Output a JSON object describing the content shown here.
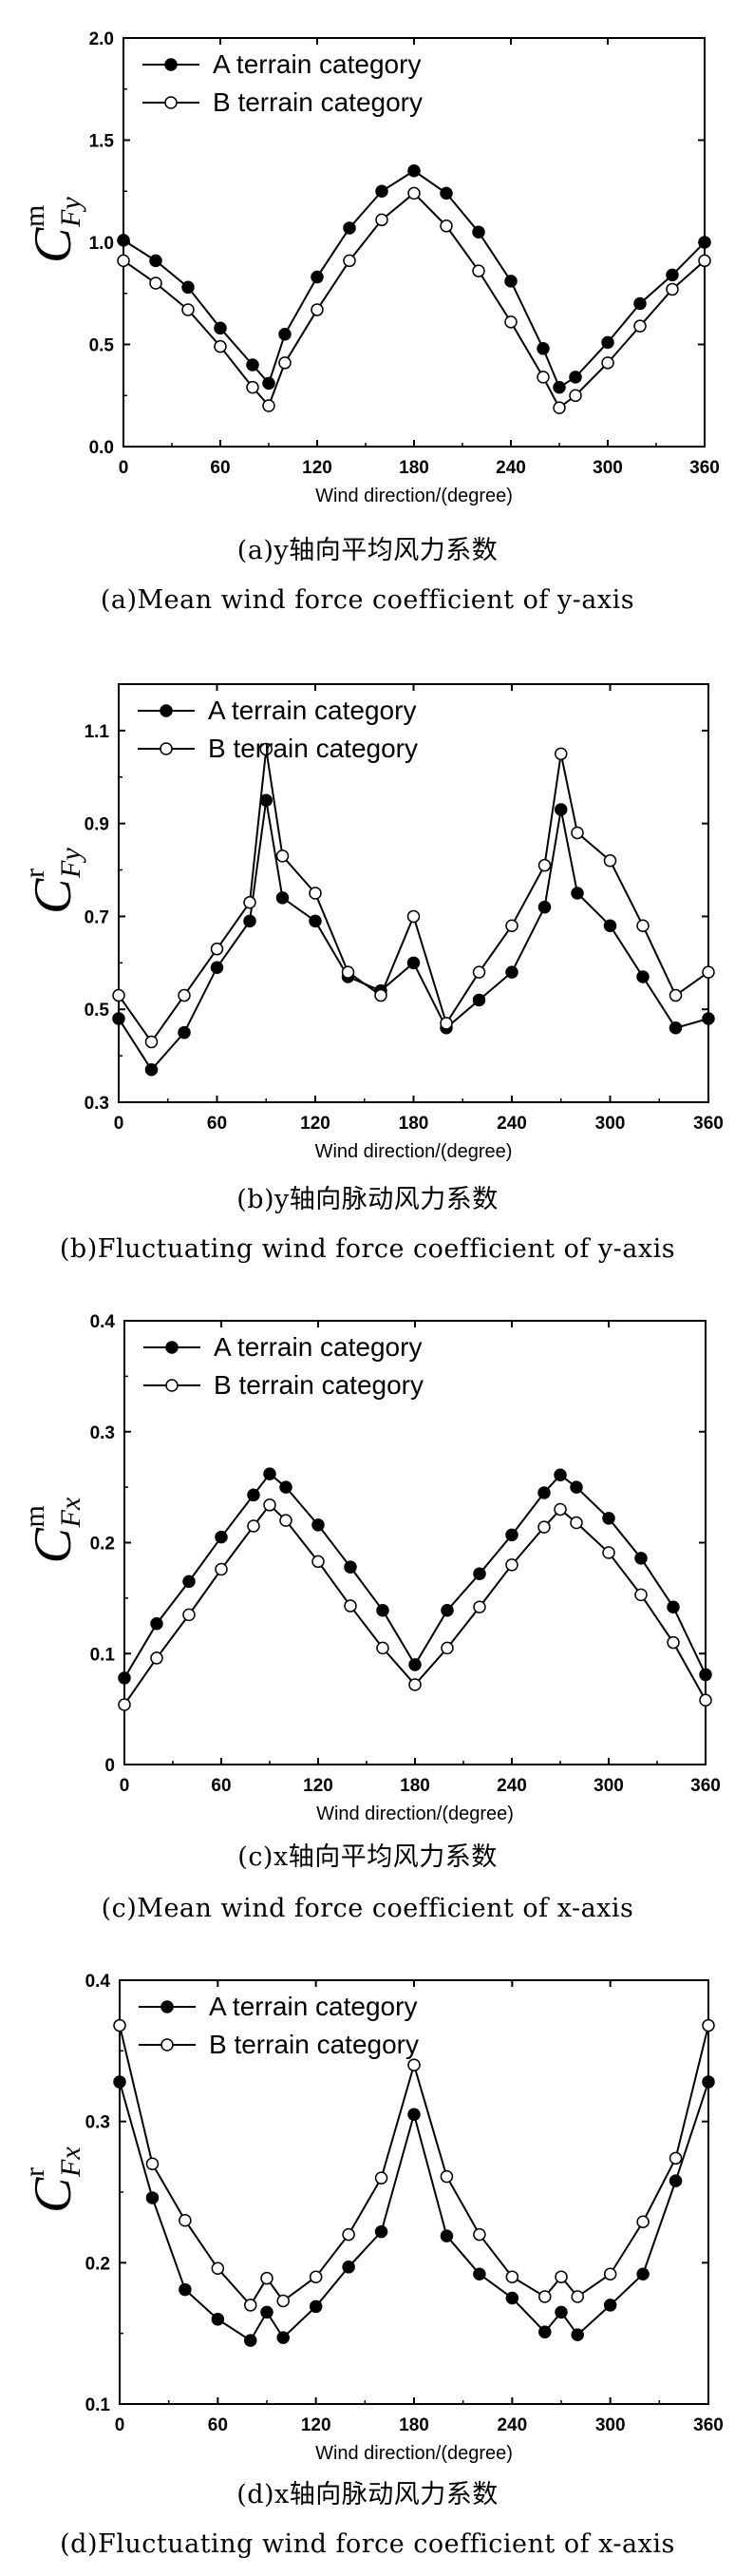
{
  "chart_data": [
    {
      "type": "line",
      "caption_cn": "(a)y轴向平均风力系数",
      "caption_en": "(a)Mean wind force coefficient of y-axis",
      "ylabel": {
        "main": "C",
        "sup": "m",
        "sub": "Fy"
      },
      "xlabel": "Wind direction/(degree)",
      "xlim": [
        0,
        360
      ],
      "xticks": [
        0,
        60,
        120,
        180,
        240,
        300,
        360
      ],
      "ylim": [
        0.0,
        2.0
      ],
      "yticks": [
        "0.0",
        "0.5",
        "1.0",
        "1.5",
        "2.0"
      ],
      "legend_position": "top-left",
      "x": [
        0,
        20,
        40,
        60,
        80,
        90,
        100,
        120,
        140,
        160,
        180,
        200,
        220,
        240,
        260,
        270,
        280,
        300,
        320,
        340,
        360
      ],
      "series": [
        {
          "name": "A terrain category",
          "marker": "filled",
          "values": [
            1.01,
            0.91,
            0.78,
            0.58,
            0.4,
            0.31,
            0.55,
            0.83,
            1.07,
            1.25,
            1.35,
            1.24,
            1.05,
            0.81,
            0.48,
            0.29,
            0.34,
            0.51,
            0.7,
            0.84,
            1.0
          ]
        },
        {
          "name": "B terrain category",
          "marker": "open",
          "values": [
            0.91,
            0.8,
            0.67,
            0.49,
            0.29,
            0.2,
            0.41,
            0.67,
            0.91,
            1.11,
            1.24,
            1.08,
            0.86,
            0.61,
            0.34,
            0.19,
            0.25,
            0.41,
            0.59,
            0.77,
            0.91
          ]
        }
      ]
    },
    {
      "type": "line",
      "caption_cn": "(b)y轴向脉动风力系数",
      "caption_en": "(b)Fluctuating wind force coefficient of y-axis",
      "ylabel": {
        "main": "C",
        "sup": "r",
        "sub": "Fy"
      },
      "xlabel": "Wind direction/(degree)",
      "xlim": [
        0,
        360
      ],
      "xticks": [
        0,
        60,
        120,
        180,
        240,
        300,
        360
      ],
      "ylim": [
        0.3,
        1.2
      ],
      "yticks": [
        "0.3",
        "0.5",
        "0.7",
        "0.9",
        "1.1"
      ],
      "legend_position": "top-left",
      "x": [
        0,
        20,
        40,
        60,
        80,
        90,
        100,
        120,
        140,
        160,
        180,
        200,
        220,
        240,
        260,
        270,
        280,
        300,
        320,
        340,
        360
      ],
      "series": [
        {
          "name": "A terrain category",
          "marker": "filled",
          "values": [
            0.48,
            0.37,
            0.45,
            0.59,
            0.69,
            0.95,
            0.74,
            0.69,
            0.57,
            0.54,
            0.6,
            0.46,
            0.52,
            0.58,
            0.72,
            0.93,
            0.75,
            0.68,
            0.57,
            0.46,
            0.48
          ]
        },
        {
          "name": "B terrain category",
          "marker": "open",
          "values": [
            0.53,
            0.43,
            0.53,
            0.63,
            0.73,
            1.06,
            0.83,
            0.75,
            0.58,
            0.53,
            0.7,
            0.47,
            0.58,
            0.68,
            0.81,
            1.05,
            0.88,
            0.82,
            0.68,
            0.53,
            0.58
          ]
        }
      ]
    },
    {
      "type": "line",
      "caption_cn": "(c)x轴向平均风力系数",
      "caption_en": "(c)Mean wind force coefficient of x-axis",
      "ylabel": {
        "main": "C",
        "sup": "m",
        "sub": "Fx"
      },
      "xlabel": "Wind direction/(degree)",
      "xlim": [
        0,
        360
      ],
      "xticks": [
        0,
        60,
        120,
        180,
        240,
        300,
        360
      ],
      "ylim": [
        0.0,
        0.4
      ],
      "yticks": [
        "0",
        "0.1",
        "0.2",
        "0.3",
        "0.4"
      ],
      "legend_position": "top-left",
      "x": [
        0,
        20,
        40,
        60,
        80,
        90,
        100,
        120,
        140,
        160,
        180,
        200,
        220,
        240,
        260,
        270,
        280,
        300,
        320,
        340,
        360
      ],
      "series": [
        {
          "name": "A terrain category",
          "marker": "filled",
          "values": [
            0.078,
            0.127,
            0.165,
            0.205,
            0.243,
            0.262,
            0.25,
            0.216,
            0.178,
            0.139,
            0.09,
            0.139,
            0.172,
            0.207,
            0.245,
            0.261,
            0.25,
            0.222,
            0.186,
            0.142,
            0.081
          ]
        },
        {
          "name": "B terrain category",
          "marker": "open",
          "values": [
            0.054,
            0.096,
            0.135,
            0.176,
            0.215,
            0.234,
            0.22,
            0.183,
            0.143,
            0.105,
            0.072,
            0.105,
            0.142,
            0.18,
            0.214,
            0.23,
            0.218,
            0.191,
            0.153,
            0.11,
            0.058
          ]
        }
      ]
    },
    {
      "type": "line",
      "caption_cn": "(d)x轴向脉动风力系数",
      "caption_en": "(d)Fluctuating wind force coefficient of x-axis",
      "ylabel": {
        "main": "C",
        "sup": "r",
        "sub": "Fx"
      },
      "xlabel": "Wind direction/(degree)",
      "xlim": [
        0,
        360
      ],
      "xticks": [
        0,
        60,
        120,
        180,
        240,
        300,
        360
      ],
      "ylim": [
        0.1,
        0.4
      ],
      "yticks": [
        "0.1",
        "0.2",
        "0.3",
        "0.4"
      ],
      "legend_position": "top-left",
      "x": [
        0,
        20,
        40,
        60,
        80,
        90,
        100,
        120,
        140,
        160,
        180,
        200,
        220,
        240,
        260,
        270,
        280,
        300,
        320,
        340,
        360
      ],
      "series": [
        {
          "name": "A terrain category",
          "marker": "filled",
          "values": [
            0.328,
            0.246,
            0.181,
            0.16,
            0.145,
            0.165,
            0.147,
            0.169,
            0.197,
            0.222,
            0.305,
            0.219,
            0.192,
            0.175,
            0.151,
            0.165,
            0.149,
            0.17,
            0.192,
            0.258,
            0.328
          ]
        },
        {
          "name": "B terrain category",
          "marker": "open",
          "values": [
            0.368,
            0.27,
            0.23,
            0.196,
            0.17,
            0.189,
            0.173,
            0.19,
            0.22,
            0.26,
            0.34,
            0.261,
            0.22,
            0.19,
            0.176,
            0.19,
            0.176,
            0.192,
            0.229,
            0.274,
            0.368
          ]
        }
      ]
    }
  ]
}
